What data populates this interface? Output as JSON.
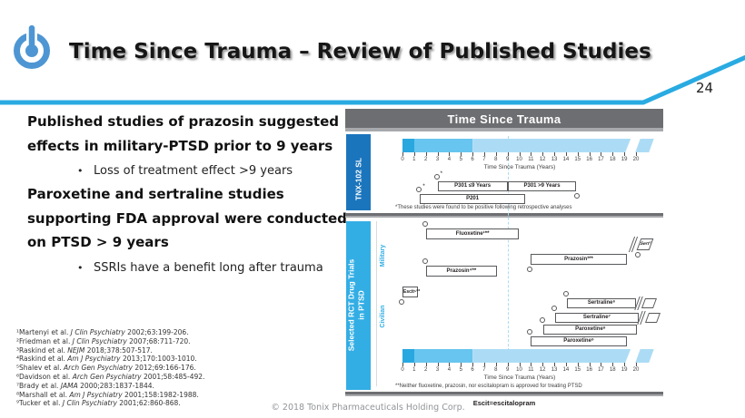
{
  "slide": {
    "page_number": "24",
    "title": "Time Since Trauma – Review of Published Studies",
    "copyright": "© 2018 Tonix Pharmaceuticals Holding Corp.",
    "logo": "power-button-icon"
  },
  "content": {
    "heading1": "Published studies of prazosin suggested effects in military-PTSD prior to 9 years",
    "bullet1": "Loss of treatment effect >9 years",
    "heading2": "Paroxetine and sertraline studies supporting FDA approval were conducted on PTSD > 9 years",
    "bullet2": "SSRIs have a benefit long after trauma"
  },
  "references": [
    {
      "pre": "¹Martenyi et al. ",
      "journal": "J Clin Psychiatry",
      "post": " 2002;63:199-206."
    },
    {
      "pre": "²Friedman et al. ",
      "journal": "J Clin Psychiatry",
      "post": " 2007;68:711-720."
    },
    {
      "pre": "³Raskind et al. ",
      "journal": "NEJM",
      "post": " 2018;378:507-517."
    },
    {
      "pre": "⁴Raskind et al. ",
      "journal": "Am J Psychiatry",
      "post": " 2013;170:1003-1010."
    },
    {
      "pre": "⁵Shalev et al. ",
      "journal": "Arch Gen Psychiatry",
      "post": " 2012;69:166-176."
    },
    {
      "pre": "⁶Davidson et al. ",
      "journal": "Arch Gen Psychiatry",
      "post": " 2001;58:485-492."
    },
    {
      "pre": "⁷Brady et al. ",
      "journal": "JAMA",
      "post": " 2000;283:1837-1844."
    },
    {
      "pre": "⁸Marshall et al. ",
      "journal": "Am J Psychiatry",
      "post": " 2001;158:1982-1988."
    },
    {
      "pre": "⁹Tucker et al. ",
      "journal": "J Clin Psychiatry",
      "post": " 2001;62:860-868."
    }
  ],
  "chart_data": {
    "type": "gantt",
    "title": "Time Since Trauma",
    "xlabel": "Time Since Trauma (Years)",
    "x_ticks": [
      0,
      1,
      2,
      3,
      4,
      5,
      6,
      7,
      8,
      9,
      10,
      11,
      12,
      13,
      14,
      15,
      16,
      17,
      18,
      19,
      20
    ],
    "xlim": [
      0,
      21.5
    ],
    "axis_break_year": 19.7,
    "reference_line_year": 9,
    "grid": false,
    "timeline_gradient": [
      {
        "from": 0,
        "to": 1,
        "color": "#29a8e0"
      },
      {
        "from": 1,
        "to": 6,
        "color": "#67c5ef"
      },
      {
        "from": 6,
        "to": 19.55,
        "color": "#acdcf5"
      },
      {
        "from": 20.15,
        "to": 21.35,
        "color": "#acdcf5",
        "after_break": true
      }
    ],
    "sidebar_groups": [
      {
        "label": "TNX-102 SL",
        "color": "#1b75bc"
      },
      {
        "label": "Selected RCT Drug Trials in PTSD",
        "color": "#33aee4"
      }
    ],
    "subgroup_labels": [
      "Military",
      "Civilian"
    ],
    "positive_marker": "*",
    "footnote_tnx": "*These studies were found to be positive following retrospective analyses",
    "footnote_rct": "**Neither fluoxetine, prazosin, nor escitalopram is approved for treating PTSD",
    "abbreviation_note": "Escit=escitalopram",
    "trials": [
      {
        "group": "TNX-102 SL",
        "label": "P301 ≤9 Years",
        "start": 3,
        "end": 9
      },
      {
        "group": "TNX-102 SL",
        "label": "P301 >9 Years",
        "start": 9,
        "end": 14.9
      },
      {
        "group": "TNX-102 SL",
        "label": "P201",
        "start": 1.5,
        "end": 10.5
      },
      {
        "group": "Military",
        "label": "Fluoxetine¹**",
        "start": 2,
        "end": 10
      },
      {
        "group": "Military",
        "label": "Sert²",
        "start": 20.2,
        "end": 21.3,
        "off_scale": true
      },
      {
        "group": "Military",
        "label": "Prazosin³**",
        "start": 11,
        "end": 19.2
      },
      {
        "group": "Military",
        "label": "Prazosin⁴**",
        "start": 2,
        "end": 8.1
      },
      {
        "group": "Civilian",
        "label": "Escit⁵**",
        "start": 0,
        "end": 1.3
      },
      {
        "group": "Civilian",
        "label": "Sertraline⁶",
        "start": 14.1,
        "end": 20,
        "off_scale": true
      },
      {
        "group": "Civilian",
        "label": "Sertraline⁷",
        "start": 13.1,
        "end": 20.2,
        "off_scale": true
      },
      {
        "group": "Civilian",
        "label": "Paroxetine⁸",
        "start": 12.1,
        "end": 20.1
      },
      {
        "group": "Civilian",
        "label": "Paroxetine⁹",
        "start": 11,
        "end": 19.2
      }
    ]
  }
}
